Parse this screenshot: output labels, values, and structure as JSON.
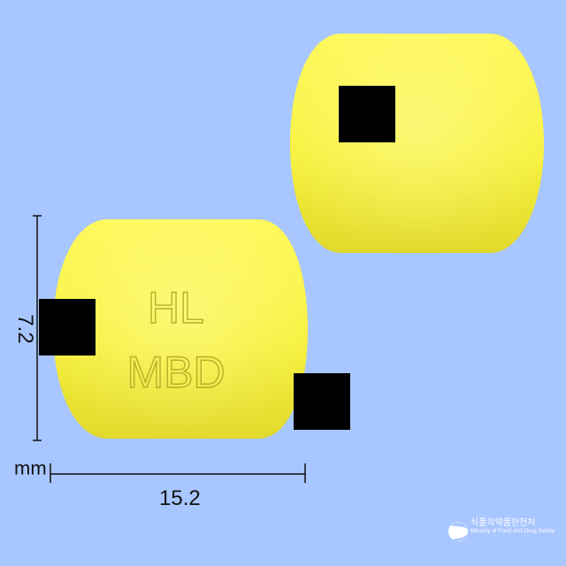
{
  "image": {
    "background_color": "#a8c6ff",
    "pill_color": "#f7f13c",
    "imprint": {
      "line1": "HL",
      "line2": "MBD"
    },
    "dimensions": {
      "height": "7.2",
      "unit": "mm",
      "width": "15.2"
    },
    "watermark": {
      "korean": "식품의약품안전처",
      "english": "Ministry of Food and Drug Safety"
    }
  }
}
